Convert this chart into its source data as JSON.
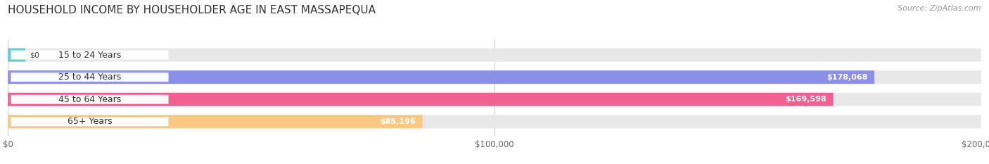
{
  "title": "HOUSEHOLD INCOME BY HOUSEHOLDER AGE IN EAST MASSAPEQUA",
  "source": "Source: ZipAtlas.com",
  "categories": [
    "15 to 24 Years",
    "25 to 44 Years",
    "45 to 64 Years",
    "65+ Years"
  ],
  "values": [
    0,
    178068,
    169598,
    85196
  ],
  "bar_colors": [
    "#5ecfcc",
    "#8b8fe8",
    "#f06090",
    "#f9c882"
  ],
  "bar_bg_color": "#e8e8e8",
  "value_labels": [
    "$0",
    "$178,068",
    "$169,598",
    "$85,196"
  ],
  "x_ticks": [
    0,
    100000,
    200000
  ],
  "x_tick_labels": [
    "$0",
    "$100,000",
    "$200,000"
  ],
  "xlim": [
    0,
    200000
  ],
  "background_color": "#ffffff",
  "title_fontsize": 11,
  "source_fontsize": 8,
  "tick_fontsize": 8.5,
  "bar_label_fontsize": 8,
  "category_fontsize": 9,
  "bar_height": 0.6,
  "fig_width": 14.06,
  "fig_height": 2.33
}
